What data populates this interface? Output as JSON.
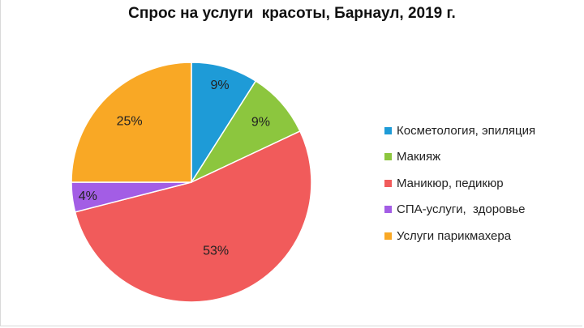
{
  "chart_data": {
    "type": "pie",
    "title": "Спрос на услуги  красоты, Барнаул, 2019 г.",
    "legend_position": "right",
    "slices": [
      {
        "name": "Косметология, эпиляция",
        "value": 9,
        "label": "9%",
        "color": "#1e9bd7"
      },
      {
        "name": "Макияж",
        "value": 9,
        "label": "9%",
        "color": "#8cc63e"
      },
      {
        "name": "Маникюр, педикюр",
        "value": 53,
        "label": "53%",
        "color": "#f15b5b"
      },
      {
        "name": "СПА-услуги,  здоровье",
        "value": 4,
        "label": "4%",
        "color": "#a35de5"
      },
      {
        "name": "Услуги парикмахера",
        "value": 25,
        "label": "25%",
        "color": "#f9a825"
      }
    ]
  }
}
